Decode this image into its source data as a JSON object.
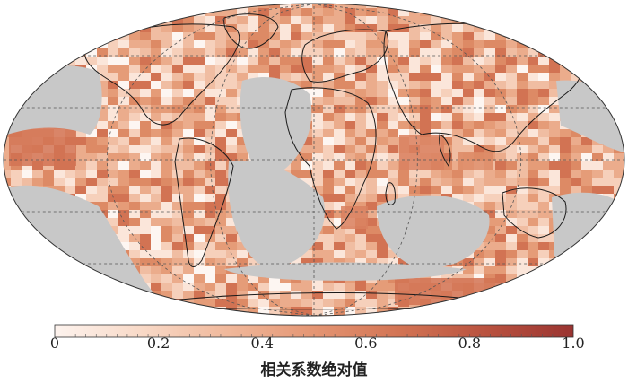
{
  "colorbar": {
    "title": "相关系数绝对值",
    "min": 0.0,
    "max": 1.0,
    "ticks": [
      {
        "value": 0.0,
        "label": "0"
      },
      {
        "value": 0.2,
        "label": "0.2"
      },
      {
        "value": 0.4,
        "label": "0.4"
      },
      {
        "value": 0.6,
        "label": "0.6"
      },
      {
        "value": 0.8,
        "label": "0.8"
      },
      {
        "value": 1.0,
        "label": "1.0"
      }
    ],
    "colors": [
      "#fdf3ee",
      "#f8d9c7",
      "#f0b89b",
      "#e49573",
      "#d27353",
      "#b9523f",
      "#9a3431"
    ]
  },
  "map": {
    "projection": "Robinson",
    "masked_color": "#c8c8c8",
    "graticule": {
      "lon_step": 60,
      "lat_step": 30
    }
  }
}
